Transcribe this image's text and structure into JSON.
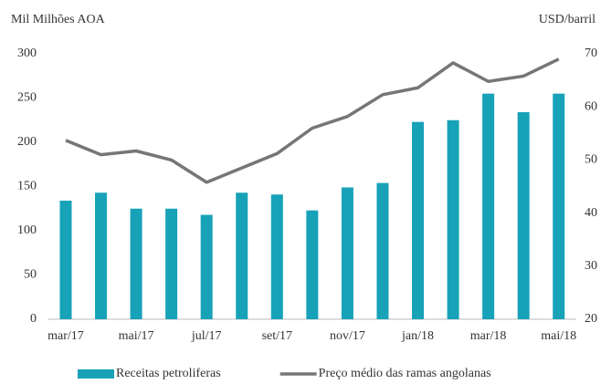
{
  "chart_data": {
    "type": "bar_line",
    "y_label": "Mil Milhões AOA",
    "y2_label": "USD/barril",
    "categories": [
      "mar/17",
      null,
      "mai/17",
      null,
      "jul/17",
      null,
      "set/17",
      null,
      "nov/17",
      null,
      "jan/18",
      null,
      "mar/18",
      null,
      "mai/18"
    ],
    "series": [
      {
        "name": "Receitas petroliferas",
        "color": "#17a2b8",
        "kind": "bar",
        "values": [
          134,
          143,
          125,
          125,
          118,
          143,
          141,
          123,
          149,
          154,
          223,
          225,
          255,
          234,
          255
        ]
      },
      {
        "name": "Preço médio das ramas angolanas",
        "color": "#767676",
        "kind": "line",
        "axis": "y2",
        "values": [
          53.7,
          51.0,
          51.7,
          50.0,
          45.8,
          48.5,
          51.2,
          56.0,
          58.2,
          62.3,
          63.6,
          68.3,
          64.8,
          65.8,
          69.0
        ]
      }
    ],
    "ylim": [
      0,
      300
    ],
    "yticks": [
      0,
      50,
      100,
      150,
      200,
      250,
      300
    ],
    "y2lim": [
      20,
      70
    ],
    "y2ticks": [
      20,
      30,
      40,
      50,
      60,
      70
    ],
    "legend": "bottom"
  }
}
